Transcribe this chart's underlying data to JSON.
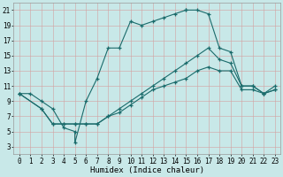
{
  "xlabel": "Humidex (Indice chaleur)",
  "xlim": [
    -0.5,
    23.5
  ],
  "ylim": [
    2,
    22
  ],
  "xticks": [
    0,
    1,
    2,
    3,
    4,
    5,
    6,
    7,
    8,
    9,
    10,
    11,
    12,
    13,
    14,
    15,
    16,
    17,
    18,
    19,
    20,
    21,
    22,
    23
  ],
  "yticks": [
    3,
    5,
    7,
    9,
    11,
    13,
    15,
    17,
    19,
    21
  ],
  "bg_color": "#c8e8e8",
  "line_color": "#1a6b6b",
  "grid_color_v": "#d4a0a0",
  "grid_color_h": "#d4a0a0",
  "line1_x": [
    0,
    1,
    2,
    3,
    4,
    5,
    5,
    6,
    7,
    8,
    9,
    10,
    11,
    12,
    13,
    14,
    15,
    15,
    16,
    17,
    18,
    19,
    20,
    21,
    22,
    23
  ],
  "line1_y": [
    10,
    10,
    9,
    8,
    5.5,
    5.0,
    3.5,
    9,
    12,
    16,
    16,
    19.5,
    19,
    19.5,
    20,
    20.5,
    21,
    21,
    21,
    20.5,
    16,
    15.5,
    11,
    11,
    10,
    11
  ],
  "line2_x": [
    0,
    2,
    3,
    4,
    5,
    6,
    7,
    8,
    9,
    10,
    11,
    12,
    13,
    14,
    15,
    16,
    17,
    18,
    19,
    20,
    21,
    22,
    23
  ],
  "line2_y": [
    10,
    8,
    6,
    6,
    6,
    6,
    6,
    7,
    8,
    9,
    10,
    11,
    12,
    13,
    14,
    15,
    16,
    14.5,
    14,
    11,
    11,
    10,
    10.5
  ],
  "line3_x": [
    0,
    2,
    3,
    4,
    5,
    6,
    7,
    8,
    9,
    10,
    11,
    12,
    13,
    14,
    15,
    16,
    17,
    18,
    19,
    20,
    21,
    22,
    23
  ],
  "line3_y": [
    10,
    8,
    6,
    6,
    6,
    6,
    6,
    7,
    7.5,
    8.5,
    9.5,
    10.5,
    11,
    11.5,
    12,
    13,
    13.5,
    13,
    13,
    10.5,
    10.5,
    10,
    10.5
  ],
  "tick_fontsize": 5.5,
  "label_fontsize": 6.5
}
